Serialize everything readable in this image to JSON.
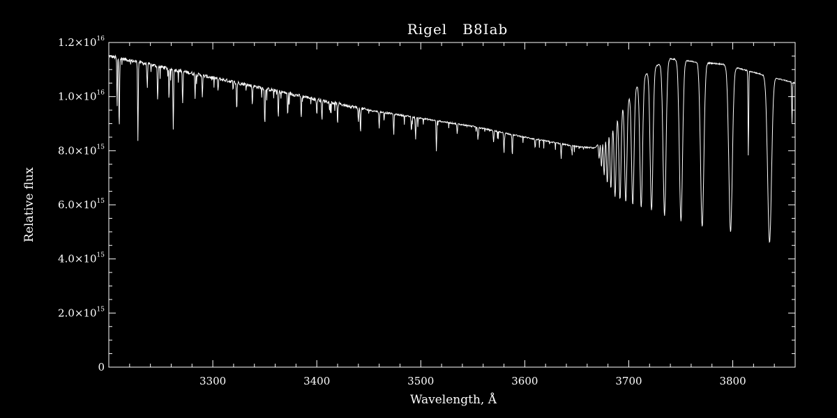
{
  "chart_data": {
    "type": "line",
    "title": "Rigel   B8Iab",
    "xlabel": "Wavelength, Å",
    "ylabel": "Relative flux",
    "xlim": [
      3200,
      3860
    ],
    "ylim": [
      0,
      1.2e+16
    ],
    "x_ticks": [
      {
        "value": 3300,
        "label": "3300"
      },
      {
        "value": 3400,
        "label": "3400"
      },
      {
        "value": 3500,
        "label": "3500"
      },
      {
        "value": 3600,
        "label": "3600"
      },
      {
        "value": 3700,
        "label": "3700"
      },
      {
        "value": 3800,
        "label": "3800"
      }
    ],
    "y_ticks": [
      {
        "value": 0,
        "mantissa": "0",
        "exponent": ""
      },
      {
        "value": 2000000000000000.0,
        "mantissa": "2.0×10",
        "exponent": "15"
      },
      {
        "value": 4000000000000000.0,
        "mantissa": "4.0×10",
        "exponent": "15"
      },
      {
        "value": 6000000000000000.0,
        "mantissa": "6.0×10",
        "exponent": "15"
      },
      {
        "value": 8000000000000000.0,
        "mantissa": "8.0×10",
        "exponent": "15"
      },
      {
        "value": 1e+16,
        "mantissa": "1.0×10",
        "exponent": "16"
      },
      {
        "value": 1.2e+16,
        "mantissa": "1.2×10",
        "exponent": "16"
      }
    ],
    "grid": false,
    "colors": {
      "background": "#000000",
      "line": "#ffffff",
      "axes": "#ffffff"
    },
    "continuum": {
      "x": [
        3200,
        3250,
        3300,
        3350,
        3400,
        3450,
        3500,
        3550,
        3600,
        3650,
        3668,
        3690,
        3720,
        3740,
        3760,
        3790,
        3820,
        3850,
        3860
      ],
      "y": [
        1.15e+16,
        1.11e+16,
        1.07e+16,
        1.03e+16,
        9900000000000000.0,
        9500000000000000.0,
        9200000000000000.0,
        8900000000000000.0,
        8500000000000000.0,
        8150000000000000.0,
        8100000000000000.0,
        9500000000000000.0,
        1.1e+16,
        1.14e+16,
        1.13e+16,
        1.12e+16,
        1.09e+16,
        1.06e+16,
        1.05e+16
      ]
    },
    "balmer_lines": [
      {
        "x": 3835.4,
        "y": 4600000000000000.0,
        "width": 2.2
      },
      {
        "x": 3797.9,
        "y": 5000000000000000.0,
        "width": 2.0
      },
      {
        "x": 3770.6,
        "y": 5200000000000000.0,
        "width": 1.9
      },
      {
        "x": 3750.2,
        "y": 5400000000000000.0,
        "width": 1.8
      },
      {
        "x": 3734.4,
        "y": 5600000000000000.0,
        "width": 1.7
      },
      {
        "x": 3721.9,
        "y": 5800000000000000.0,
        "width": 1.6
      },
      {
        "x": 3711.97,
        "y": 5900000000000000.0,
        "width": 1.5
      },
      {
        "x": 3703.86,
        "y": 6000000000000000.0,
        "width": 1.4
      },
      {
        "x": 3697.15,
        "y": 6100000000000000.0,
        "width": 1.3
      },
      {
        "x": 3691.56,
        "y": 6200000000000000.0,
        "width": 1.2
      },
      {
        "x": 3686.83,
        "y": 6300000000000000.0,
        "width": 1.1
      },
      {
        "x": 3682.81,
        "y": 6600000000000000.0,
        "width": 1.0
      },
      {
        "x": 3679.35,
        "y": 6800000000000000.0,
        "width": 0.9
      },
      {
        "x": 3676.36,
        "y": 7100000000000000.0,
        "width": 0.8
      },
      {
        "x": 3673.76,
        "y": 7400000000000000.0,
        "width": 0.7
      },
      {
        "x": 3671.48,
        "y": 7700000000000000.0,
        "width": 0.6
      }
    ],
    "metal_lines": [
      {
        "x": 3210,
        "y": 8800000000000000.0
      },
      {
        "x": 3208,
        "y": 9600000000000000.0
      },
      {
        "x": 3228,
        "y": 8400000000000000.0
      },
      {
        "x": 3237,
        "y": 1.04e+16
      },
      {
        "x": 3247,
        "y": 9800000000000000.0
      },
      {
        "x": 3258,
        "y": 1.01e+16
      },
      {
        "x": 3262,
        "y": 8800000000000000.0
      },
      {
        "x": 3271,
        "y": 9700000000000000.0
      },
      {
        "x": 3283,
        "y": 1.01e+16
      },
      {
        "x": 3290,
        "y": 1e+16
      },
      {
        "x": 3305,
        "y": 1.02e+16
      },
      {
        "x": 3323,
        "y": 9500000000000000.0
      },
      {
        "x": 3338,
        "y": 9700000000000000.0
      },
      {
        "x": 3350,
        "y": 8900000000000000.0
      },
      {
        "x": 3363,
        "y": 9200000000000000.0
      },
      {
        "x": 3372,
        "y": 9300000000000000.0
      },
      {
        "x": 3385,
        "y": 9200000000000000.0
      },
      {
        "x": 3400,
        "y": 9300000000000000.0
      },
      {
        "x": 3405,
        "y": 9100000000000000.0
      },
      {
        "x": 3420,
        "y": 9000000000000000.0
      },
      {
        "x": 3440,
        "y": 9100000000000000.0
      },
      {
        "x": 3442,
        "y": 8700000000000000.0
      },
      {
        "x": 3460,
        "y": 8800000000000000.0
      },
      {
        "x": 3474,
        "y": 8600000000000000.0
      },
      {
        "x": 3491,
        "y": 8700000000000000.0
      },
      {
        "x": 3495,
        "y": 8400000000000000.0
      },
      {
        "x": 3515,
        "y": 8000000000000000.0
      },
      {
        "x": 3535,
        "y": 8600000000000000.0
      },
      {
        "x": 3555,
        "y": 8400000000000000.0
      },
      {
        "x": 3570,
        "y": 8300000000000000.0
      },
      {
        "x": 3580,
        "y": 7900000000000000.0
      },
      {
        "x": 3588,
        "y": 7800000000000000.0
      },
      {
        "x": 3610,
        "y": 8100000000000000.0
      },
      {
        "x": 3635,
        "y": 7700000000000000.0
      },
      {
        "x": 3645,
        "y": 8000000000000000.0
      },
      {
        "x": 3815,
        "y": 7800000000000000.0
      },
      {
        "x": 3857,
        "y": 9000000000000000.0
      }
    ]
  }
}
